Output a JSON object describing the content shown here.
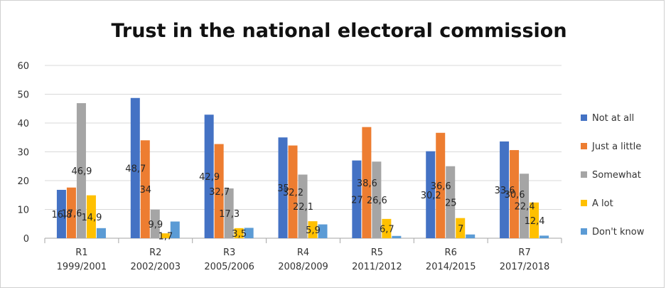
{
  "chart_data": {
    "type": "bar",
    "title": "Trust in the national electoral commission",
    "categories": [
      [
        "R1",
        "1999/2001"
      ],
      [
        "R2",
        "2002/2003"
      ],
      [
        "R3",
        "2005/2006"
      ],
      [
        "R4",
        "2008/2009"
      ],
      [
        "R5",
        "2011/2012"
      ],
      [
        "R6",
        "2014/2015"
      ],
      [
        "R7",
        "2017/2018"
      ]
    ],
    "ylim": [
      0,
      60
    ],
    "yticks": [
      "0",
      "10",
      "20",
      "30",
      "40",
      "50",
      "60"
    ],
    "grid": true,
    "legend_position": "right",
    "series": [
      {
        "name": "Not at all",
        "color": "#4472C4",
        "values": [
          16.8,
          48.7,
          42.9,
          35,
          27,
          30.2,
          33.6
        ],
        "labels": [
          "16,8",
          "48,7",
          "42,9",
          "35",
          "27",
          "30,2",
          "33,6"
        ]
      },
      {
        "name": "Just a little",
        "color": "#ED7D31",
        "values": [
          17.6,
          34,
          32.7,
          32.2,
          38.6,
          36.6,
          30.6
        ],
        "labels": [
          "17,6",
          "34",
          "32,7",
          "32,2",
          "38,6",
          "36,6",
          "30,6"
        ]
      },
      {
        "name": "Somewhat",
        "color": "#A5A5A5",
        "values": [
          46.9,
          9.9,
          17.3,
          22.1,
          26.6,
          25,
          22.4
        ],
        "labels": [
          "46,9",
          "9,9",
          "17,3",
          "22,1",
          "26,6",
          "25",
          "22,4"
        ]
      },
      {
        "name": "A lot",
        "color": "#FFC000",
        "values": [
          14.9,
          1.7,
          3.5,
          5.9,
          6.7,
          7,
          12.4
        ],
        "labels": [
          "14,9",
          "1,7",
          "3,5",
          "5,9",
          "6,7",
          "7",
          "12,4"
        ]
      },
      {
        "name": "Don't know",
        "color": "#5B9BD5",
        "values": [
          3.5,
          5.8,
          3.6,
          4.8,
          0.8,
          1.3,
          0.9
        ],
        "labels": []
      }
    ]
  }
}
